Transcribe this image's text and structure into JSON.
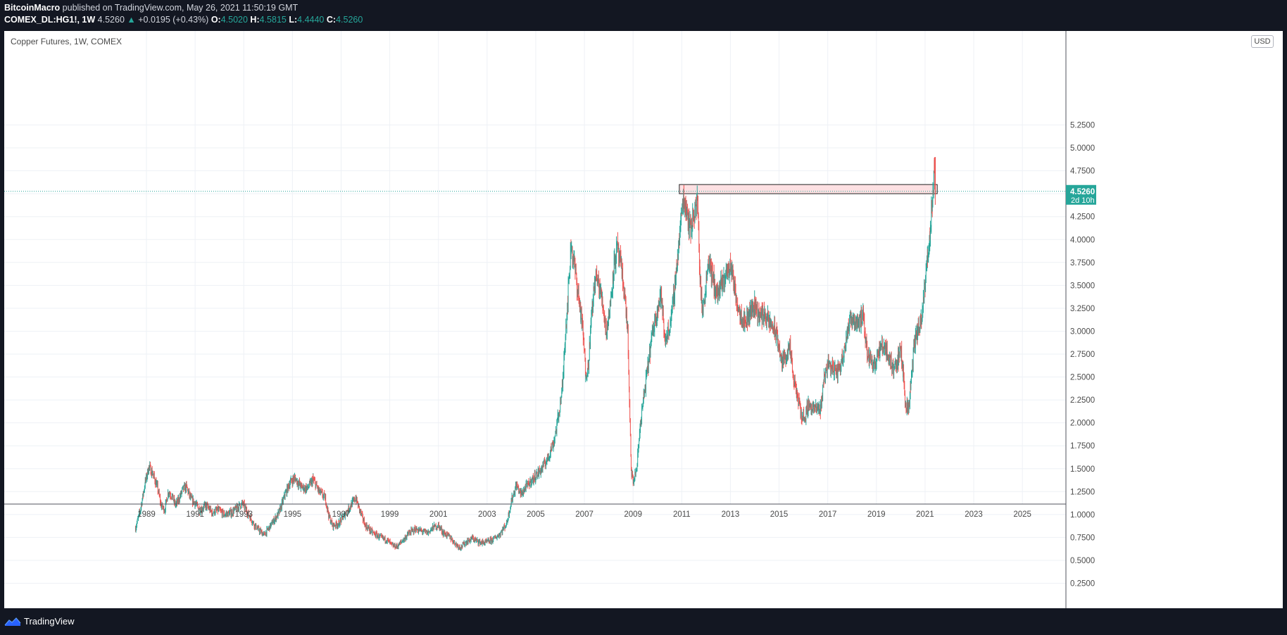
{
  "header": {
    "author": "BitcoinMacro",
    "published": "published on TradingView.com, May 26, 2021 11:50:19 GMT",
    "symbol": "COMEX_DL:HG1!, 1W",
    "last": "4.5260",
    "change_arrow": "▲",
    "change": "+0.0195 (+0.43%)",
    "o_label": "O:",
    "open": "4.5020",
    "h_label": "H:",
    "high": "4.5815",
    "l_label": "L:",
    "low": "4.4440",
    "c_label": "C:",
    "close": "4.5260"
  },
  "legend": {
    "title": "Copper Futures, 1W, COMEX"
  },
  "currency": "USD",
  "price_tag": {
    "value": "4.5260",
    "countdown": "2d 10h"
  },
  "footer": {
    "brand": "TradingView",
    "logo_icon": "tradingview-logo-icon"
  },
  "colors": {
    "up": "#26a69a",
    "down": "#ef5350",
    "last_price": "#26a69a",
    "zone_fill": "#fde0e2"
  },
  "chart_data": {
    "type": "candlestick",
    "title": "Copper Futures, 1W, COMEX",
    "series": [
      {
        "name": "COMEX_DL:HG1!",
        "interval": "1W"
      }
    ],
    "ylim": [
      0.125,
      5.375
    ],
    "y_ticks": [
      "0.2500",
      "0.5000",
      "0.7500",
      "1.0000",
      "1.2500",
      "1.5000",
      "1.7500",
      "2.0000",
      "2.2500",
      "2.5000",
      "2.7500",
      "3.0000",
      "3.2500",
      "3.5000",
      "3.7500",
      "4.0000",
      "4.2500",
      "4.5000",
      "4.7500",
      "5.0000",
      "5.2500"
    ],
    "x_ticks": [
      "1989",
      "1991",
      "1993",
      "1995",
      "1997",
      "1999",
      "2001",
      "2003",
      "2005",
      "2007",
      "2009",
      "2011",
      "2013",
      "2015",
      "2017",
      "2019",
      "2021",
      "2023",
      "2025"
    ],
    "xlim": [
      1983.3,
      2027.1
    ],
    "last_price": 4.526,
    "grid": true,
    "path": [
      [
        1988.55,
        0.85
      ],
      [
        1988.75,
        1.05
      ],
      [
        1988.95,
        1.35
      ],
      [
        1989.1,
        1.52
      ],
      [
        1989.25,
        1.45
      ],
      [
        1989.45,
        1.3
      ],
      [
        1989.6,
        1.1
      ],
      [
        1989.75,
        1.05
      ],
      [
        1989.9,
        1.25
      ],
      [
        1990.05,
        1.2
      ],
      [
        1990.2,
        1.1
      ],
      [
        1990.35,
        1.18
      ],
      [
        1990.5,
        1.28
      ],
      [
        1990.65,
        1.3
      ],
      [
        1990.8,
        1.18
      ],
      [
        1991.0,
        1.12
      ],
      [
        1991.2,
        1.05
      ],
      [
        1991.45,
        1.1
      ],
      [
        1991.7,
        1.02
      ],
      [
        1991.95,
        1.05
      ],
      [
        1992.2,
        1.0
      ],
      [
        1992.5,
        1.02
      ],
      [
        1992.75,
        1.08
      ],
      [
        1992.95,
        1.12
      ],
      [
        1993.2,
        1.0
      ],
      [
        1993.45,
        0.88
      ],
      [
        1993.65,
        0.82
      ],
      [
        1993.85,
        0.78
      ],
      [
        1994.0,
        0.84
      ],
      [
        1994.2,
        0.92
      ],
      [
        1994.45,
        1.02
      ],
      [
        1994.7,
        1.22
      ],
      [
        1994.9,
        1.35
      ],
      [
        1995.1,
        1.4
      ],
      [
        1995.35,
        1.3
      ],
      [
        1995.6,
        1.28
      ],
      [
        1995.85,
        1.38
      ],
      [
        1996.1,
        1.25
      ],
      [
        1996.35,
        1.18
      ],
      [
        1996.5,
        0.98
      ],
      [
        1996.65,
        0.88
      ],
      [
        1996.9,
        0.9
      ],
      [
        1997.15,
        1.0
      ],
      [
        1997.4,
        1.1
      ],
      [
        1997.6,
        1.18
      ],
      [
        1997.8,
        1.02
      ],
      [
        1998.0,
        0.88
      ],
      [
        1998.3,
        0.8
      ],
      [
        1998.6,
        0.75
      ],
      [
        1998.9,
        0.72
      ],
      [
        1999.1,
        0.66
      ],
      [
        1999.3,
        0.65
      ],
      [
        1999.55,
        0.72
      ],
      [
        1999.8,
        0.8
      ],
      [
        2000.05,
        0.84
      ],
      [
        2000.3,
        0.82
      ],
      [
        2000.55,
        0.8
      ],
      [
        2000.8,
        0.86
      ],
      [
        2001.0,
        0.88
      ],
      [
        2001.2,
        0.8
      ],
      [
        2001.45,
        0.76
      ],
      [
        2001.7,
        0.68
      ],
      [
        2001.9,
        0.64
      ],
      [
        2002.15,
        0.7
      ],
      [
        2002.4,
        0.74
      ],
      [
        2002.65,
        0.7
      ],
      [
        2002.9,
        0.69
      ],
      [
        2003.2,
        0.72
      ],
      [
        2003.5,
        0.78
      ],
      [
        2003.8,
        0.9
      ],
      [
        2004.0,
        1.15
      ],
      [
        2004.2,
        1.32
      ],
      [
        2004.4,
        1.22
      ],
      [
        2004.6,
        1.3
      ],
      [
        2004.8,
        1.36
      ],
      [
        2005.0,
        1.42
      ],
      [
        2005.25,
        1.5
      ],
      [
        2005.5,
        1.62
      ],
      [
        2005.75,
        1.8
      ],
      [
        2005.95,
        2.1
      ],
      [
        2006.1,
        2.4
      ],
      [
        2006.2,
        2.9
      ],
      [
        2006.35,
        3.5
      ],
      [
        2006.45,
        3.95
      ],
      [
        2006.6,
        3.7
      ],
      [
        2006.75,
        3.4
      ],
      [
        2006.85,
        3.2
      ],
      [
        2006.95,
        2.95
      ],
      [
        2007.05,
        2.55
      ],
      [
        2007.15,
        2.6
      ],
      [
        2007.3,
        3.2
      ],
      [
        2007.45,
        3.6
      ],
      [
        2007.6,
        3.5
      ],
      [
        2007.75,
        3.3
      ],
      [
        2007.9,
        3.0
      ],
      [
        2008.05,
        3.25
      ],
      [
        2008.2,
        3.7
      ],
      [
        2008.35,
        3.9
      ],
      [
        2008.5,
        3.7
      ],
      [
        2008.65,
        3.4
      ],
      [
        2008.78,
        3.0
      ],
      [
        2008.85,
        2.2
      ],
      [
        2008.92,
        1.5
      ],
      [
        2009.0,
        1.35
      ],
      [
        2009.15,
        1.5
      ],
      [
        2009.3,
        2.0
      ],
      [
        2009.45,
        2.3
      ],
      [
        2009.6,
        2.6
      ],
      [
        2009.75,
        2.9
      ],
      [
        2009.95,
        3.2
      ],
      [
        2010.15,
        3.4
      ],
      [
        2010.3,
        2.9
      ],
      [
        2010.45,
        3.0
      ],
      [
        2010.6,
        3.2
      ],
      [
        2010.75,
        3.6
      ],
      [
        2010.9,
        4.0
      ],
      [
        2011.05,
        4.45
      ],
      [
        2011.2,
        4.35
      ],
      [
        2011.35,
        4.1
      ],
      [
        2011.5,
        4.3
      ],
      [
        2011.65,
        4.4
      ],
      [
        2011.75,
        3.6
      ],
      [
        2011.85,
        3.2
      ],
      [
        2011.95,
        3.4
      ],
      [
        2012.1,
        3.8
      ],
      [
        2012.25,
        3.6
      ],
      [
        2012.45,
        3.4
      ],
      [
        2012.65,
        3.5
      ],
      [
        2012.85,
        3.65
      ],
      [
        2013.05,
        3.7
      ],
      [
        2013.2,
        3.4
      ],
      [
        2013.4,
        3.2
      ],
      [
        2013.6,
        3.1
      ],
      [
        2013.8,
        3.2
      ],
      [
        2014.0,
        3.3
      ],
      [
        2014.2,
        3.15
      ],
      [
        2014.4,
        3.2
      ],
      [
        2014.55,
        3.1
      ],
      [
        2014.75,
        3.05
      ],
      [
        2014.95,
        2.9
      ],
      [
        2015.1,
        2.65
      ],
      [
        2015.3,
        2.75
      ],
      [
        2015.45,
        2.8
      ],
      [
        2015.6,
        2.45
      ],
      [
        2015.75,
        2.3
      ],
      [
        2015.9,
        2.1
      ],
      [
        2016.05,
        2.05
      ],
      [
        2016.2,
        2.2
      ],
      [
        2016.45,
        2.15
      ],
      [
        2016.7,
        2.15
      ],
      [
        2016.85,
        2.5
      ],
      [
        2017.0,
        2.65
      ],
      [
        2017.2,
        2.6
      ],
      [
        2017.4,
        2.55
      ],
      [
        2017.6,
        2.7
      ],
      [
        2017.8,
        3.0
      ],
      [
        2018.0,
        3.15
      ],
      [
        2018.2,
        3.1
      ],
      [
        2018.45,
        3.15
      ],
      [
        2018.6,
        2.8
      ],
      [
        2018.75,
        2.7
      ],
      [
        2018.95,
        2.65
      ],
      [
        2019.15,
        2.8
      ],
      [
        2019.35,
        2.85
      ],
      [
        2019.5,
        2.7
      ],
      [
        2019.7,
        2.6
      ],
      [
        2019.9,
        2.7
      ],
      [
        2020.0,
        2.8
      ],
      [
        2020.1,
        2.55
      ],
      [
        2020.2,
        2.2
      ],
      [
        2020.3,
        2.15
      ],
      [
        2020.4,
        2.35
      ],
      [
        2020.55,
        2.85
      ],
      [
        2020.7,
        3.0
      ],
      [
        2020.85,
        3.1
      ],
      [
        2021.0,
        3.5
      ],
      [
        2021.1,
        3.8
      ],
      [
        2021.2,
        4.1
      ],
      [
        2021.3,
        4.4
      ],
      [
        2021.38,
        4.7
      ],
      [
        2021.42,
        4.55
      ]
    ]
  },
  "annotations": {
    "resistance_zone": {
      "x0": 2010.9,
      "x1": 2021.5,
      "y0": 4.5,
      "y1": 4.6
    }
  }
}
